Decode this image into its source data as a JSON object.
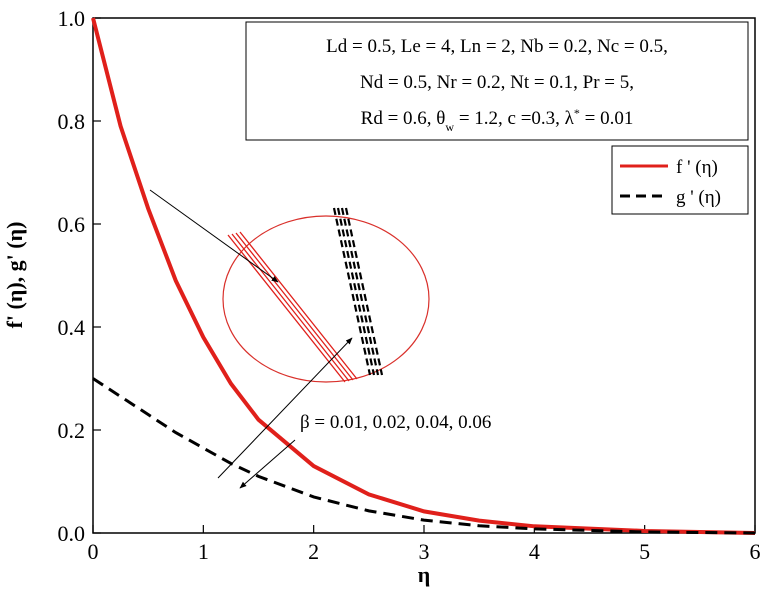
{
  "chart_data": {
    "type": "line",
    "x_label": "η",
    "y_label": "f' (η), g' (η)",
    "x": [
      0,
      0.25,
      0.5,
      0.75,
      1,
      1.25,
      1.5,
      2,
      2.5,
      3,
      3.5,
      4,
      5,
      6
    ],
    "series": [
      {
        "name": "f ' (η)",
        "color": "#e0201b",
        "dash": false,
        "values": [
          1,
          0.79,
          0.63,
          0.49,
          0.38,
          0.29,
          0.22,
          0.13,
          0.075,
          0.042,
          0.024,
          0.013,
          0.004,
          0
        ]
      },
      {
        "name": "g ' (η)",
        "color": "#000000",
        "dash": true,
        "values": [
          0.3,
          0.265,
          0.23,
          0.195,
          0.165,
          0.135,
          0.11,
          0.07,
          0.043,
          0.025,
          0.014,
          0.008,
          0.002,
          0
        ]
      }
    ],
    "xlim": [
      0,
      6
    ],
    "xticks": [
      0,
      1,
      2,
      3,
      4,
      5,
      6
    ],
    "ylim": [
      0,
      1
    ],
    "yticks": [
      {
        "value": 0,
        "label": "0.0"
      },
      0.2,
      0.4,
      0.6,
      0.8,
      {
        "value": 1,
        "label": "1.0"
      }
    ],
    "legend": "upper right",
    "parameters": [
      [
        "Ld = 0.5, Le = 4, Ln = 2, Nb = 0.2, Nc = 0.5,"
      ],
      [
        "Nd = 0.5, Nr = 0.2, Nt = 0.1, Pr = 5,"
      ],
      [
        "Rd = 0.6, θ",
        "w",
        " = 1.2, c =0.3, λ",
        "*",
        " = 0.01"
      ]
    ],
    "annotation": "β = 0.01, 0.02, 0.04, 0.06"
  }
}
